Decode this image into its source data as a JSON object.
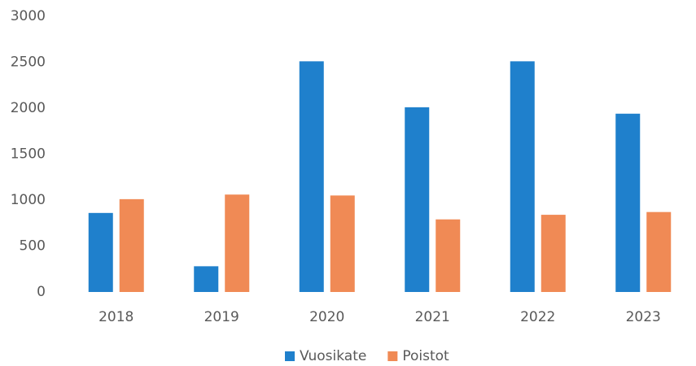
{
  "chart_data": {
    "type": "bar",
    "categories": [
      "2018",
      "2019",
      "2020",
      "2021",
      "2022",
      "2023"
    ],
    "series": [
      {
        "name": "Vuosikate",
        "color": "#1f80cc",
        "values": [
          860,
          280,
          2510,
          2010,
          2510,
          1940
        ]
      },
      {
        "name": "Poistot",
        "color": "#f08a55",
        "values": [
          1010,
          1060,
          1050,
          790,
          840,
          870
        ]
      }
    ],
    "ylim": [
      0,
      3000
    ],
    "yticks": [
      0,
      500,
      1000,
      1500,
      2000,
      2500,
      3000
    ],
    "grid": false,
    "legend": "bottom"
  }
}
